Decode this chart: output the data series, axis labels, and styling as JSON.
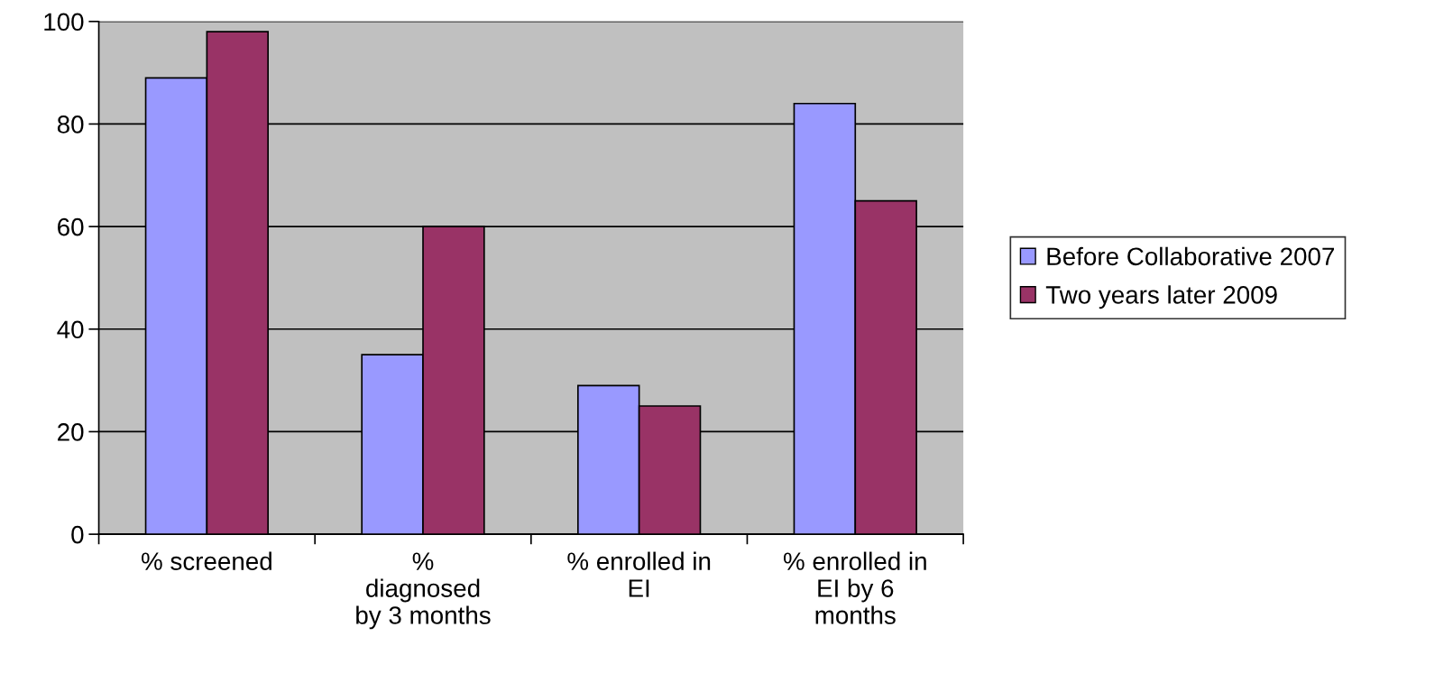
{
  "chart_data": {
    "type": "bar",
    "categories": [
      "% screened",
      "%\ndiagnosed\nby 3 months",
      "% enrolled in\nEI",
      "% enrolled in\nEI by 6\nmonths"
    ],
    "series": [
      {
        "name": "Before Collaborative 2007",
        "color": "#9999ff",
        "values": [
          89,
          35,
          29,
          84
        ]
      },
      {
        "name": "Two years later 2009",
        "color": "#993366",
        "values": [
          98,
          60,
          25,
          65
        ]
      }
    ],
    "ylim": [
      0,
      100
    ],
    "yticks": [
      0,
      20,
      40,
      60,
      80,
      100
    ],
    "grid": "y",
    "legend": "right"
  }
}
